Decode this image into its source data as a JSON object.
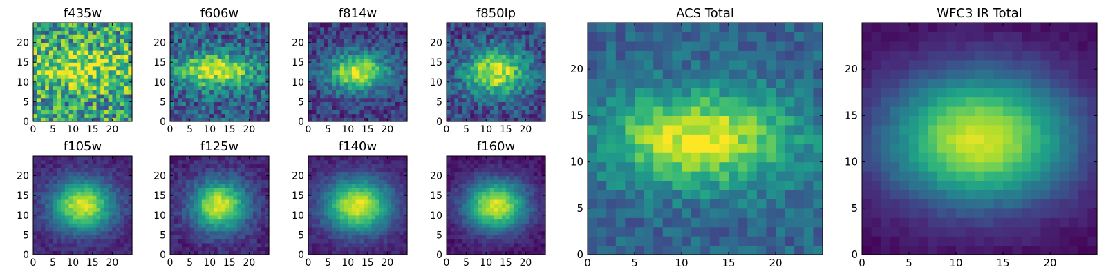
{
  "chart_data": [
    {
      "type": "heatmap",
      "title": "f435w",
      "xlim": [
        0,
        25
      ],
      "ylim": [
        0,
        25
      ],
      "xticks": [
        0,
        5,
        10,
        15,
        20
      ],
      "yticks": [
        0,
        5,
        10,
        15,
        20
      ],
      "model": {
        "cx": 12,
        "cy": 13,
        "sx": 11,
        "sy": 3.5,
        "amp": 0.35,
        "base": 0.55,
        "noise": 0.35,
        "seed": 1
      }
    },
    {
      "type": "heatmap",
      "title": "f606w",
      "xlim": [
        0,
        25
      ],
      "ylim": [
        0,
        25
      ],
      "xticks": [
        0,
        5,
        10,
        15,
        20
      ],
      "yticks": [
        0,
        5,
        10,
        15,
        20
      ],
      "model": {
        "cx": 11,
        "cy": 12.5,
        "sx": 7,
        "sy": 3,
        "amp": 0.65,
        "base": 0.3,
        "noise": 0.22,
        "seed": 2
      }
    },
    {
      "type": "heatmap",
      "title": "f814w",
      "xlim": [
        0,
        25
      ],
      "ylim": [
        0,
        25
      ],
      "xticks": [
        0,
        5,
        10,
        15,
        20
      ],
      "yticks": [
        0,
        5,
        10,
        15,
        20
      ],
      "model": {
        "cx": 12,
        "cy": 12,
        "sx": 5.5,
        "sy": 3.5,
        "amp": 0.75,
        "base": 0.18,
        "noise": 0.15,
        "seed": 3
      }
    },
    {
      "type": "heatmap",
      "title": "f850lp",
      "xlim": [
        0,
        25
      ],
      "ylim": [
        0,
        25
      ],
      "xticks": [
        0,
        5,
        10,
        15,
        20
      ],
      "yticks": [
        0,
        5,
        10,
        15,
        20
      ],
      "model": {
        "cx": 12,
        "cy": 12,
        "sx": 5.5,
        "sy": 4,
        "amp": 0.72,
        "base": 0.22,
        "noise": 0.18,
        "seed": 4
      }
    },
    {
      "type": "heatmap",
      "title": "f105w",
      "xlim": [
        0,
        25
      ],
      "ylim": [
        0,
        25
      ],
      "xticks": [
        0,
        5,
        10,
        15,
        20
      ],
      "yticks": [
        0,
        5,
        10,
        15,
        20
      ],
      "model": {
        "cx": 12,
        "cy": 12,
        "sx": 5.5,
        "sy": 4.5,
        "amp": 0.85,
        "base": 0.1,
        "noise": 0.07,
        "seed": 5
      }
    },
    {
      "type": "heatmap",
      "title": "f125w",
      "xlim": [
        0,
        25
      ],
      "ylim": [
        0,
        25
      ],
      "xticks": [
        0,
        5,
        10,
        15,
        20
      ],
      "yticks": [
        0,
        5,
        10,
        15,
        20
      ],
      "model": {
        "cx": 12,
        "cy": 12,
        "sx": 5,
        "sy": 4.5,
        "amp": 0.85,
        "base": 0.1,
        "noise": 0.08,
        "seed": 6
      }
    },
    {
      "type": "heatmap",
      "title": "f140w",
      "xlim": [
        0,
        25
      ],
      "ylim": [
        0,
        25
      ],
      "xticks": [
        0,
        5,
        10,
        15,
        20
      ],
      "yticks": [
        0,
        5,
        10,
        15,
        20
      ],
      "model": {
        "cx": 12,
        "cy": 12,
        "sx": 6,
        "sy": 4.8,
        "amp": 0.88,
        "base": 0.08,
        "noise": 0.06,
        "seed": 7
      }
    },
    {
      "type": "heatmap",
      "title": "f160w",
      "xlim": [
        0,
        25
      ],
      "ylim": [
        0,
        25
      ],
      "xticks": [
        0,
        5,
        10,
        15,
        20
      ],
      "yticks": [
        0,
        5,
        10,
        15,
        20
      ],
      "model": {
        "cx": 12,
        "cy": 12,
        "sx": 5.5,
        "sy": 4.5,
        "amp": 0.9,
        "base": 0.05,
        "noise": 0.06,
        "seed": 8
      }
    },
    {
      "type": "heatmap",
      "title": "ACS Total",
      "xlim": [
        0,
        25
      ],
      "ylim": [
        0,
        25
      ],
      "xticks": [
        0,
        5,
        10,
        15,
        20
      ],
      "yticks": [
        0,
        5,
        10,
        15,
        20
      ],
      "model": {
        "cx": 11.5,
        "cy": 12,
        "sx": 7,
        "sy": 3.5,
        "amp": 0.65,
        "base": 0.32,
        "noise": 0.12,
        "seed": 9
      }
    },
    {
      "type": "heatmap",
      "title": "WFC3 IR Total",
      "xlim": [
        0,
        25
      ],
      "ylim": [
        0,
        25
      ],
      "xticks": [
        0,
        5,
        10,
        15,
        20
      ],
      "yticks": [
        0,
        5,
        10,
        15,
        20
      ],
      "model": {
        "cx": 12,
        "cy": 12,
        "sx": 7,
        "sy": 5,
        "amp": 0.92,
        "base": 0.02,
        "noise": 0.03,
        "seed": 10
      }
    }
  ],
  "colormap": [
    "#440154",
    "#482878",
    "#3e4a89",
    "#31688e",
    "#26828e",
    "#1f9e89",
    "#35b779",
    "#6ece58",
    "#b5de2b",
    "#fde725"
  ]
}
